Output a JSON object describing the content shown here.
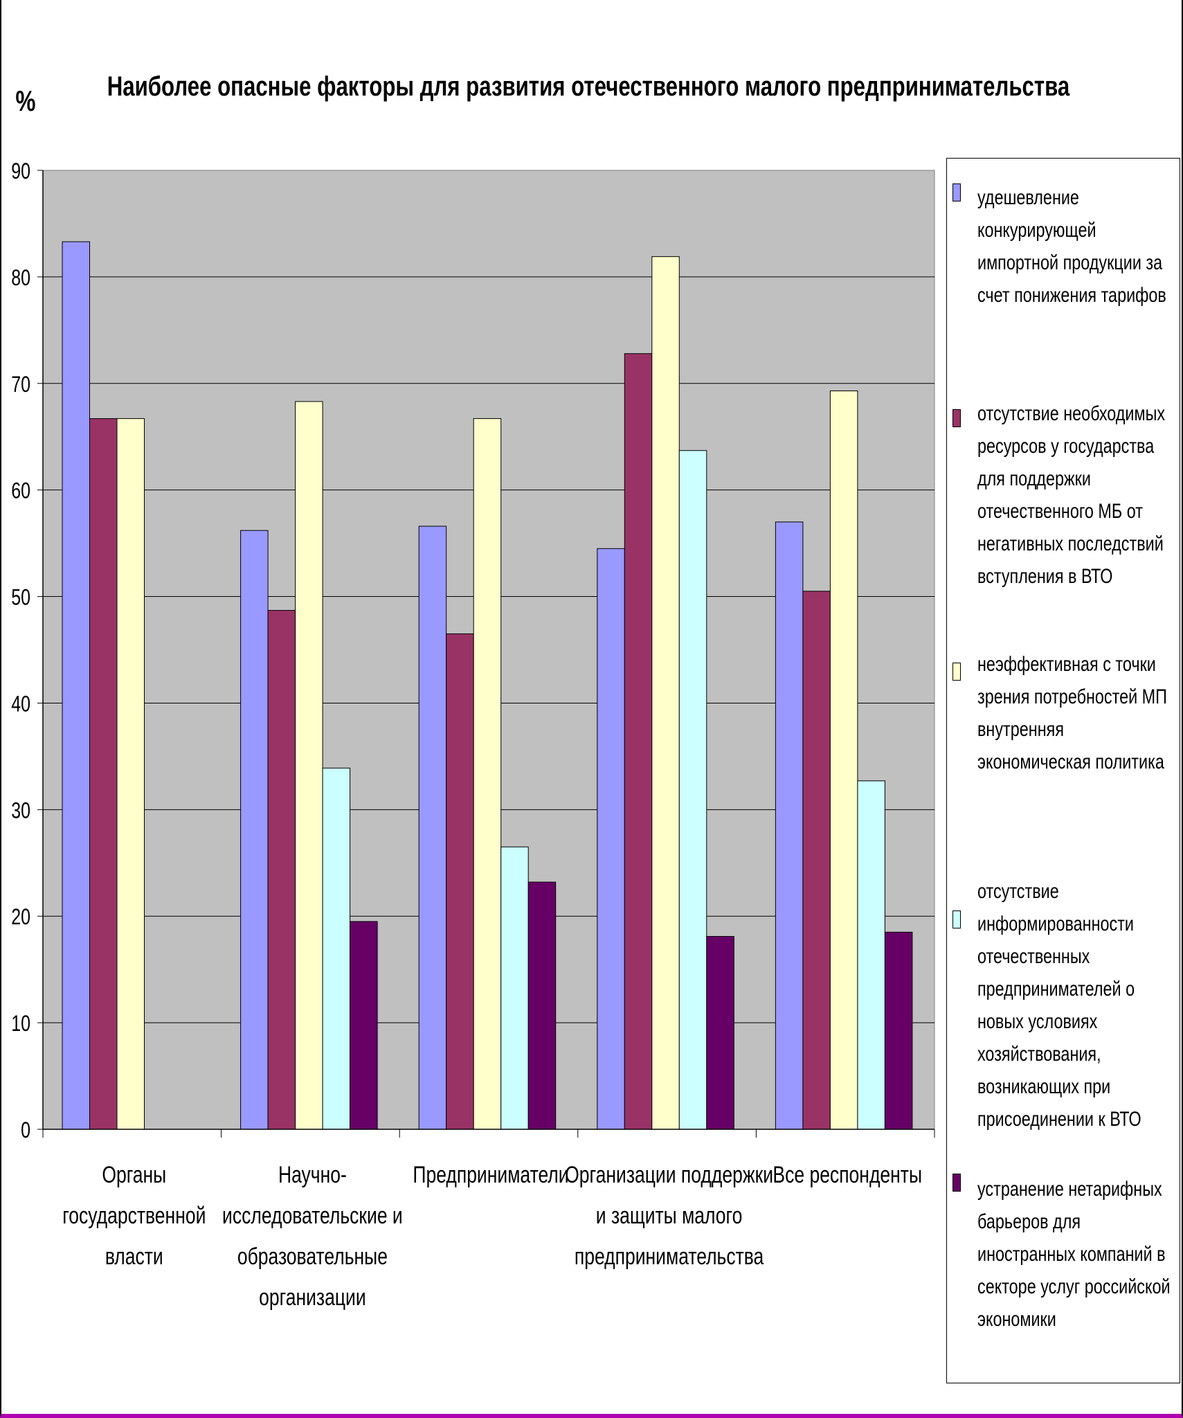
{
  "chart_data": {
    "type": "bar",
    "title": "Наиболее опасные факторы для развития отечественного малого предпринимательства",
    "ylabel": "%",
    "ylim": [
      0,
      90
    ],
    "yticks": [
      "0",
      "10",
      "20",
      "30",
      "40",
      "50",
      "60",
      "70",
      "80",
      "90"
    ],
    "grid": true,
    "legend_position": "right",
    "categories": [
      "Органы государственной власти",
      "Научно-исследовательские и образовательные организации",
      "Предприниматели",
      "Организации поддержки и защиты малого предпринимательства",
      "Все респонденты"
    ],
    "category_label_lines": [
      [
        "Органы",
        "государственной",
        "власти"
      ],
      [
        "Научно-",
        "исследовательские и",
        "образовательные",
        "организации"
      ],
      [
        "Предприниматели"
      ],
      [
        "Организации поддержки",
        "и защиты малого",
        "предпринимательства"
      ],
      [
        "Все респонденты"
      ]
    ],
    "series": [
      {
        "name": "удешевление конкурирующей импортной продукции за счет понижения тарифов",
        "name_lines": [
          "удешевление",
          "конкурирующей",
          "импортной продукции за",
          "счет понижения тарифов"
        ],
        "color": "#9999ff",
        "values": [
          83.3,
          56.2,
          56.6,
          54.5,
          57.0
        ]
      },
      {
        "name": "отсутствие необходимых ресурсов у государства для поддержки отечественного МБ от негативных последствий вступления в ВТО",
        "name_lines": [
          "отсутствие необходимых",
          "ресурсов у государства",
          "для поддержки",
          "отечественного МБ от",
          "негативных последствий",
          "вступления в ВТО"
        ],
        "color": "#993366",
        "values": [
          66.7,
          48.7,
          46.5,
          72.8,
          50.5
        ]
      },
      {
        "name": "неэффективная с точки зрения потребностей МП внутренняя экономическая политика",
        "name_lines": [
          "неэффективная с точки",
          "зрения потребностей МП",
          "внутренняя",
          "экономическая политика"
        ],
        "color": "#ffffcc",
        "values": [
          66.7,
          68.3,
          66.7,
          81.9,
          69.3
        ]
      },
      {
        "name": "отсутствие информированности отечественных предпринимателей о новых условиях хозяйствования, возникающих при присоединении к ВТО",
        "name_lines": [
          "отсутствие",
          "информированности",
          "отечественных",
          "предпринимателей о",
          "новых условиях",
          "хозяйствования,",
          "возникающих при",
          "присоединении к ВТО"
        ],
        "color": "#ccffff",
        "values": [
          null,
          33.9,
          26.5,
          63.7,
          32.7
        ]
      },
      {
        "name": "устранение нетарифных барьеров для иностранных компаний в секторе услуг российской экономики",
        "name_lines": [
          "устранение нетарифных",
          "барьеров для",
          "иностранных компаний в",
          "секторе услуг российской",
          "экономики"
        ],
        "color": "#660066",
        "values": [
          null,
          19.5,
          23.2,
          18.1,
          18.5
        ]
      }
    ],
    "plot_area_color": "#c0c0c0"
  }
}
